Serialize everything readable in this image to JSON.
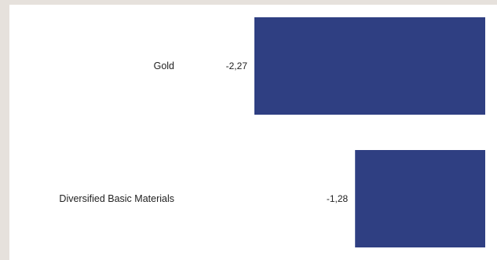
{
  "chart_data": {
    "type": "bar",
    "orientation": "horizontal",
    "categories": [
      "Gold",
      "Diversified Basic Materials"
    ],
    "values": [
      -2.27,
      -1.28
    ],
    "value_labels": [
      "-2,27",
      "-1,28"
    ],
    "title": "",
    "xlabel": "",
    "ylabel": "",
    "xlim": [
      -2.27,
      0
    ],
    "grid": false,
    "legend": "none",
    "bar_color": "#2f3f82"
  },
  "colors": {
    "page_background": "#e6e1dc",
    "panel_background": "#ffffff",
    "text": "#222222"
  }
}
